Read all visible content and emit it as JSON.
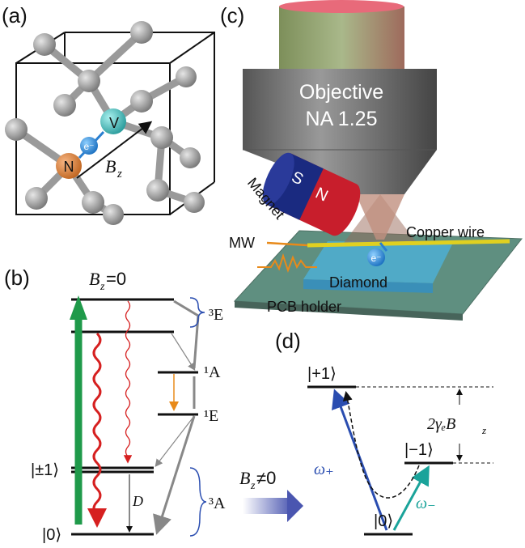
{
  "panel_labels": [
    "(a)",
    "(b)",
    "(c)",
    "(d)"
  ],
  "panel_a": {
    "nitrogen": "N",
    "vacancy": "V",
    "electron": "e⁻",
    "field": {
      "symbol": "B",
      "sub": "z"
    }
  },
  "panel_c": {
    "objective": "Objective",
    "aperture": "NA 1.25",
    "magnet": "Magnet",
    "south": "S",
    "north": "N",
    "microwave": "MW",
    "wire": "Copper wire",
    "electron": "e⁻",
    "diamond": "Diamond",
    "holder": "PCB holder"
  },
  "panel_b": {
    "condition": {
      "symbol": "B",
      "sub": "z",
      "rest": "=0"
    },
    "levels": {
      "triplet_excited": "³E",
      "singlet_a": "¹A",
      "singlet_e": "¹E",
      "plus_minus": "|±1⟩",
      "zero": "|0⟩",
      "triplet_ground": "³A"
    },
    "splitting": "D"
  },
  "transition": {
    "symbol": "B",
    "sub": "z",
    "rest": "≠0"
  },
  "panel_d": {
    "plus": "|+1⟩",
    "minus": "|−1⟩",
    "zero": "|0⟩",
    "splitting": {
      "prefix": "2γₑB",
      "sub": "z"
    },
    "omega_plus": "ω₊",
    "omega_minus": "ω₋"
  }
}
